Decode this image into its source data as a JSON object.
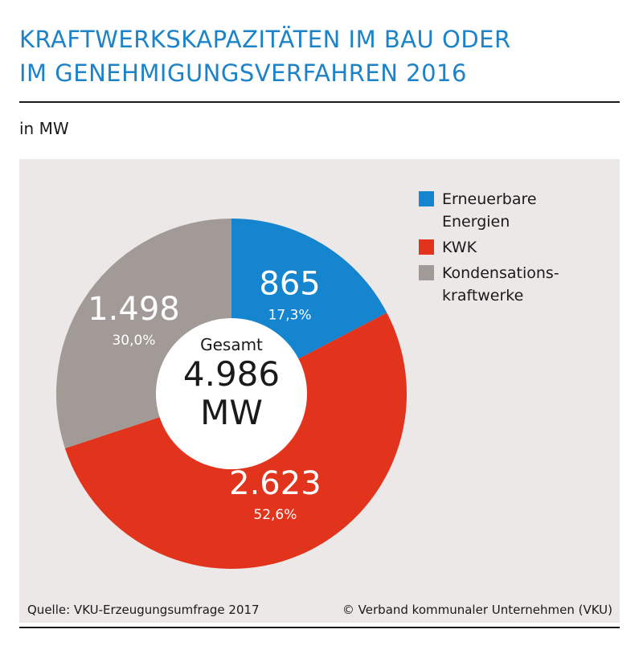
{
  "title": {
    "line1": "KRAFTWERKSKAPAZITÄTEN IM BAU ODER",
    "line2": "IM GENEHMIGUNGSVERFAHREN 2016"
  },
  "unit_label": "in MW",
  "center": {
    "label": "Gesamt",
    "value": "4.986",
    "unit": "MW"
  },
  "chart_data": {
    "type": "pie",
    "title": "KRAFTWERKSKAPAZITÄTEN IM BAU ODER IM GENEHMIGUNGSVERFAHREN 2016",
    "unit": "in MW",
    "total": 4986,
    "slices": [
      {
        "name": "Erneuerbare Energien",
        "value": 865,
        "value_label": "865",
        "percent": 17.3,
        "percent_label": "17,3%",
        "color": "#1585cf"
      },
      {
        "name": "KWK",
        "value": 2623,
        "value_label": "2.623",
        "percent": 52.6,
        "percent_label": "52,6%",
        "color": "#e2341c"
      },
      {
        "name": "Kondensationskraftwerke",
        "value": 1498,
        "value_label": "1.498",
        "percent": 30.0,
        "percent_label": "30,0%",
        "color": "#a19a96"
      }
    ]
  },
  "legend": [
    {
      "label": "Erneuerbare Energien",
      "color": "#1585cf"
    },
    {
      "label": "KWK",
      "color": "#e2341c"
    },
    {
      "label": "Kondensations­kraftwerke",
      "color": "#a19a96"
    }
  ],
  "footer": {
    "source": "Quelle: VKU-Erzeugungsumfrage 2017",
    "copyright": "© Verband kommunaler Unternehmen (VKU)"
  }
}
